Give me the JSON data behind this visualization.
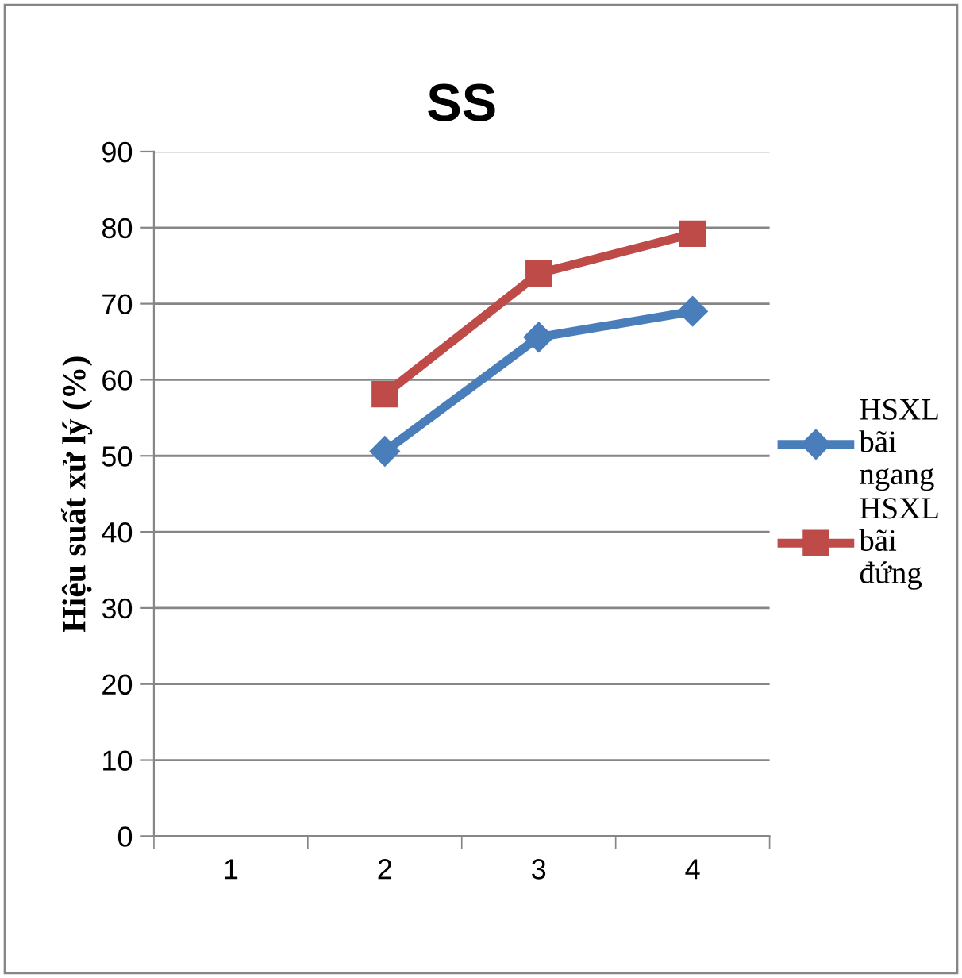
{
  "chart_data": {
    "type": "line",
    "title": "SS",
    "ylabel": "Hiệu suất xử lý (%)",
    "categories": [
      "1",
      "2",
      "3",
      "4"
    ],
    "series": [
      {
        "name": "HSXL bãi ngang",
        "color": "#4a7ebb",
        "marker": "diamond",
        "values": [
          null,
          50.6,
          65.6,
          69.0
        ]
      },
      {
        "name": "HSXL bãi đứng",
        "color": "#be4b48",
        "marker": "square",
        "values": [
          null,
          58.1,
          74.0,
          79.2
        ]
      }
    ],
    "ylim": [
      0,
      90
    ],
    "yticks": [
      0,
      10,
      20,
      30,
      40,
      50,
      60,
      70,
      80,
      90
    ],
    "grid": "y",
    "legend": "right",
    "line_style": "solid"
  }
}
